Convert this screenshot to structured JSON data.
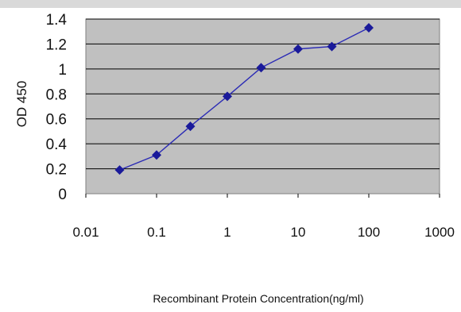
{
  "chart_data": {
    "type": "line",
    "title": "",
    "xlabel": "Recombinant Protein Concentration(ng/ml)",
    "ylabel": "OD 450",
    "x_scale": "log",
    "xlim": [
      0.01,
      1000
    ],
    "ylim": [
      0,
      1.4
    ],
    "x_ticks": [
      "0.01",
      "0.1",
      "1",
      "10",
      "100",
      "1000"
    ],
    "y_ticks": [
      "0",
      "0.2",
      "0.4",
      "0.6",
      "0.8",
      "1",
      "1.2",
      "1.4"
    ],
    "grid": "horizontal",
    "series": [
      {
        "x": [
          0.03,
          0.1,
          0.3,
          1,
          3,
          10,
          30,
          100
        ],
        "y": [
          0.19,
          0.31,
          0.54,
          0.78,
          1.01,
          1.16,
          1.18,
          1.33
        ]
      }
    ],
    "colors": {
      "line": "#2b2bb5",
      "marker": "#1a1a9a",
      "plot_bg": "#c0c0c0",
      "grid": "#000000",
      "frame": "#7f7f7f",
      "top_band": "#d9d9d9"
    }
  }
}
